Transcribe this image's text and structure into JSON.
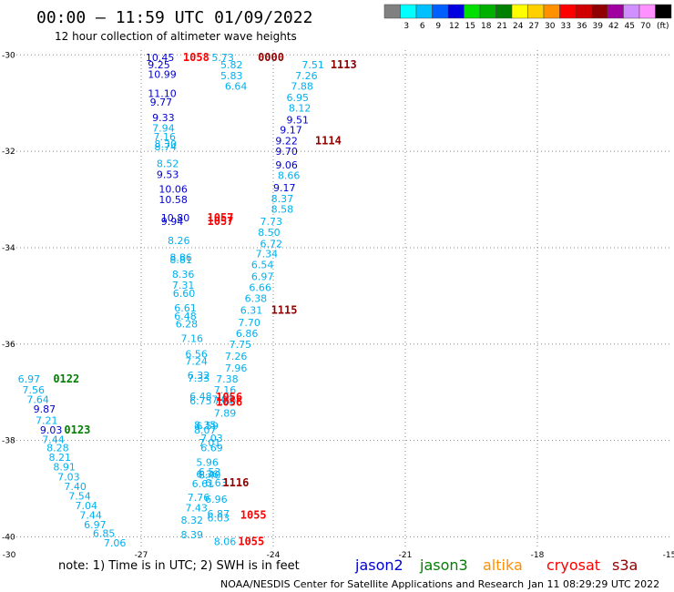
{
  "header": {
    "title": "00:00 – 11:59 UTC 01/09/2022",
    "subtitle": "12 hour collection of altimeter wave heights"
  },
  "color_scale": {
    "bins": [
      {
        "label": "",
        "color": "#808080"
      },
      {
        "label": "3",
        "color": "#00ffff"
      },
      {
        "label": "6",
        "color": "#00c0ff"
      },
      {
        "label": "9",
        "color": "#0060ff"
      },
      {
        "label": "12",
        "color": "#0000e0"
      },
      {
        "label": "15",
        "color": "#00e000"
      },
      {
        "label": "18",
        "color": "#00b000"
      },
      {
        "label": "21",
        "color": "#008000"
      },
      {
        "label": "24",
        "color": "#ffff00"
      },
      {
        "label": "27",
        "color": "#ffd000"
      },
      {
        "label": "30",
        "color": "#ff9000"
      },
      {
        "label": "33",
        "color": "#ff0000"
      },
      {
        "label": "36",
        "color": "#d00000"
      },
      {
        "label": "39",
        "color": "#900000"
      },
      {
        "label": "42",
        "color": "#a000a0"
      },
      {
        "label": "45",
        "color": "#d090ff"
      },
      {
        "label": "70",
        "color": "#ff90ff"
      },
      {
        "label": "",
        "color": "#000000"
      }
    ],
    "unit": "(ft)"
  },
  "legend": {
    "note": "note:  1) Time is in UTC; 2) SWH is in feet",
    "satellites": [
      {
        "name": "jason2",
        "color": "#0000d0"
      },
      {
        "name": "jason3",
        "color": "#008000"
      },
      {
        "name": "altika",
        "color": "#ff9000"
      },
      {
        "name": "cryosat",
        "color": "#ff0000"
      },
      {
        "name": "s3a",
        "color": "#900000"
      }
    ]
  },
  "footer": {
    "credit": "NOAA/NESDIS Center for Satellite Applications and Research",
    "timestamp": "Jan 11 08:29:29 UTC 2022"
  },
  "colors": {
    "cyan": "#00b0f0",
    "blue": "#0000d0",
    "green": "#008000",
    "red": "#ff0000",
    "dark_red": "#900000",
    "gridline": "#888888"
  },
  "chart_data": {
    "type": "scatter",
    "title": "00:00 – 11:59 UTC 01/09/2022",
    "subtitle": "12 hour collection of altimeter wave heights",
    "xlim": [
      -30,
      -15
    ],
    "ylim": [
      -40.2,
      -29.9
    ],
    "x_ticks": [
      -30,
      -27,
      -24,
      -21,
      -18,
      -15
    ],
    "x_tick_labels": [
      "-30",
      "-27",
      "-24",
      "-21",
      "-18",
      "-15"
    ],
    "y_ticks": [
      -30,
      -32,
      -34,
      -36,
      -38,
      -40
    ],
    "y_tick_labels": [
      "-30",
      "-32",
      "-34",
      "-36",
      "-38",
      "-40"
    ],
    "grid": "dotted",
    "labels": [
      {
        "lon": -26.9,
        "lat": -30.05,
        "text": "10.45",
        "c": "blue"
      },
      {
        "lon": -26.85,
        "lat": -30.2,
        "text": "9.25",
        "c": "blue"
      },
      {
        "lon": -26.85,
        "lat": -30.4,
        "text": "10.99",
        "c": "blue"
      },
      {
        "lon": -26.85,
        "lat": -30.8,
        "text": "11.10",
        "c": "blue"
      },
      {
        "lon": -26.8,
        "lat": -30.98,
        "text": "9.77",
        "c": "blue"
      },
      {
        "lon": -26.75,
        "lat": -31.3,
        "text": "9.33",
        "c": "blue"
      },
      {
        "lon": -26.75,
        "lat": -31.52,
        "text": "7.94",
        "c": "cyan"
      },
      {
        "lon": -26.72,
        "lat": -31.7,
        "text": "7.16",
        "c": "cyan"
      },
      {
        "lon": -26.7,
        "lat": -31.85,
        "text": "8.30",
        "c": "cyan"
      },
      {
        "lon": -26.7,
        "lat": -31.9,
        "text": "8.74",
        "c": "cyan"
      },
      {
        "lon": -26.65,
        "lat": -32.25,
        "text": "8.52",
        "c": "cyan"
      },
      {
        "lon": -26.65,
        "lat": -32.48,
        "text": "9.53",
        "c": "blue"
      },
      {
        "lon": -26.6,
        "lat": -32.78,
        "text": "10.06",
        "c": "blue"
      },
      {
        "lon": -26.6,
        "lat": -33.0,
        "text": "10.58",
        "c": "blue"
      },
      {
        "lon": -26.55,
        "lat": -33.38,
        "text": "10.80",
        "c": "blue"
      },
      {
        "lon": -26.55,
        "lat": -33.45,
        "text": "9.94",
        "c": "blue"
      },
      {
        "lon": -26.4,
        "lat": -33.85,
        "text": "8.26",
        "c": "cyan"
      },
      {
        "lon": -26.35,
        "lat": -34.2,
        "text": "8.86",
        "c": "cyan"
      },
      {
        "lon": -26.35,
        "lat": -34.25,
        "text": "8.81",
        "c": "cyan"
      },
      {
        "lon": -26.3,
        "lat": -34.55,
        "text": "8.36",
        "c": "cyan"
      },
      {
        "lon": -26.3,
        "lat": -34.78,
        "text": "7.31",
        "c": "cyan"
      },
      {
        "lon": -26.28,
        "lat": -34.95,
        "text": "6.60",
        "c": "cyan"
      },
      {
        "lon": -26.25,
        "lat": -35.25,
        "text": "6.61",
        "c": "cyan"
      },
      {
        "lon": -26.25,
        "lat": -35.42,
        "text": "6.48",
        "c": "cyan"
      },
      {
        "lon": -26.22,
        "lat": -35.58,
        "text": "6.28",
        "c": "cyan"
      },
      {
        "lon": -26.1,
        "lat": -35.88,
        "text": "7.16",
        "c": "cyan"
      },
      {
        "lon": -26.0,
        "lat": -36.2,
        "text": "6.56",
        "c": "cyan"
      },
      {
        "lon": -26.0,
        "lat": -36.35,
        "text": "7.24",
        "c": "cyan"
      },
      {
        "lon": -25.95,
        "lat": -36.65,
        "text": "6.32",
        "c": "cyan"
      },
      {
        "lon": -25.95,
        "lat": -36.7,
        "text": "7.33",
        "c": "cyan"
      },
      {
        "lon": -25.9,
        "lat": -37.08,
        "text": "6.48",
        "c": "cyan"
      },
      {
        "lon": -25.9,
        "lat": -37.18,
        "text": "6.75",
        "c": "cyan"
      },
      {
        "lon": -25.8,
        "lat": -37.68,
        "text": "8.35",
        "c": "cyan"
      },
      {
        "lon": -25.75,
        "lat": -37.7,
        "text": "6.59",
        "c": "cyan"
      },
      {
        "lon": -25.8,
        "lat": -37.78,
        "text": "8.07",
        "c": "cyan"
      },
      {
        "lon": -25.65,
        "lat": -37.95,
        "text": "7.03",
        "c": "cyan"
      },
      {
        "lon": -25.7,
        "lat": -38.05,
        "text": "7.01",
        "c": "cyan"
      },
      {
        "lon": -25.65,
        "lat": -38.15,
        "text": "6.69",
        "c": "cyan"
      },
      {
        "lon": -25.75,
        "lat": -38.45,
        "text": "5.96",
        "c": "cyan"
      },
      {
        "lon": -25.7,
        "lat": -38.65,
        "text": "6.53",
        "c": "cyan"
      },
      {
        "lon": -25.75,
        "lat": -38.7,
        "text": "6.36",
        "c": "cyan"
      },
      {
        "lon": -25.7,
        "lat": -38.72,
        "text": "6.40",
        "c": "cyan"
      },
      {
        "lon": -25.85,
        "lat": -38.9,
        "text": "6.61",
        "c": "cyan"
      },
      {
        "lon": -25.55,
        "lat": -38.88,
        "text": "6.63",
        "c": "cyan"
      },
      {
        "lon": -25.95,
        "lat": -39.18,
        "text": "7.76",
        "c": "cyan"
      },
      {
        "lon": -25.55,
        "lat": -39.22,
        "text": "6.96",
        "c": "cyan"
      },
      {
        "lon": -26.0,
        "lat": -39.4,
        "text": "7.43",
        "c": "cyan"
      },
      {
        "lon": -25.5,
        "lat": -39.52,
        "text": "6.87",
        "c": "cyan"
      },
      {
        "lon": -26.1,
        "lat": -39.65,
        "text": "8.32",
        "c": "cyan"
      },
      {
        "lon": -25.5,
        "lat": -39.6,
        "text": "6.03",
        "c": "cyan"
      },
      {
        "lon": -26.1,
        "lat": -39.95,
        "text": "8.39",
        "c": "cyan"
      },
      {
        "lon": -25.35,
        "lat": -40.1,
        "text": "8.06",
        "c": "cyan"
      },
      {
        "lon": -25.4,
        "lat": -30.05,
        "text": "5.73",
        "c": "cyan"
      },
      {
        "lon": -25.2,
        "lat": -30.2,
        "text": "5.82",
        "c": "cyan"
      },
      {
        "lon": -25.2,
        "lat": -30.43,
        "text": "5.83",
        "c": "cyan"
      },
      {
        "lon": -25.1,
        "lat": -30.65,
        "text": "6.64",
        "c": "cyan"
      },
      {
        "lon": -23.35,
        "lat": -30.2,
        "text": "7.51",
        "c": "cyan"
      },
      {
        "lon": -23.5,
        "lat": -30.43,
        "text": "7.26",
        "c": "cyan"
      },
      {
        "lon": -23.6,
        "lat": -30.65,
        "text": "7.88",
        "c": "cyan"
      },
      {
        "lon": -23.7,
        "lat": -30.88,
        "text": "6.95",
        "c": "cyan"
      },
      {
        "lon": -23.65,
        "lat": -31.1,
        "text": "8.12",
        "c": "cyan"
      },
      {
        "lon": -23.7,
        "lat": -31.35,
        "text": "9.51",
        "c": "blue"
      },
      {
        "lon": -23.85,
        "lat": -31.55,
        "text": "9.17",
        "c": "blue"
      },
      {
        "lon": -23.95,
        "lat": -31.78,
        "text": "9.22",
        "c": "blue"
      },
      {
        "lon": -23.95,
        "lat": -32.0,
        "text": "9.70",
        "c": "blue"
      },
      {
        "lon": -23.95,
        "lat": -32.28,
        "text": "9.06",
        "c": "blue"
      },
      {
        "lon": -23.9,
        "lat": -32.5,
        "text": "8.66",
        "c": "cyan"
      },
      {
        "lon": -24.0,
        "lat": -32.75,
        "text": "9.17",
        "c": "blue"
      },
      {
        "lon": -24.05,
        "lat": -32.98,
        "text": "8.37",
        "c": "cyan"
      },
      {
        "lon": -24.05,
        "lat": -33.2,
        "text": "8.58",
        "c": "cyan"
      },
      {
        "lon": -24.3,
        "lat": -33.45,
        "text": "7.73",
        "c": "cyan"
      },
      {
        "lon": -24.35,
        "lat": -33.68,
        "text": "8.50",
        "c": "cyan"
      },
      {
        "lon": -24.3,
        "lat": -33.92,
        "text": "6.72",
        "c": "cyan"
      },
      {
        "lon": -24.4,
        "lat": -34.12,
        "text": "7.34",
        "c": "cyan"
      },
      {
        "lon": -24.5,
        "lat": -34.35,
        "text": "6.54",
        "c": "cyan"
      },
      {
        "lon": -24.5,
        "lat": -34.6,
        "text": "6.97",
        "c": "cyan"
      },
      {
        "lon": -24.55,
        "lat": -34.82,
        "text": "6.66",
        "c": "cyan"
      },
      {
        "lon": -24.65,
        "lat": -35.05,
        "text": "6.38",
        "c": "cyan"
      },
      {
        "lon": -24.75,
        "lat": -35.3,
        "text": "6.31",
        "c": "cyan"
      },
      {
        "lon": -24.8,
        "lat": -35.55,
        "text": "7.70",
        "c": "cyan"
      },
      {
        "lon": -24.85,
        "lat": -35.78,
        "text": "6.86",
        "c": "cyan"
      },
      {
        "lon": -25.0,
        "lat": -36.0,
        "text": "7.75",
        "c": "cyan"
      },
      {
        "lon": -25.1,
        "lat": -36.25,
        "text": "7.26",
        "c": "cyan"
      },
      {
        "lon": -25.1,
        "lat": -36.5,
        "text": "7.96",
        "c": "cyan"
      },
      {
        "lon": -25.3,
        "lat": -36.72,
        "text": "7.38",
        "c": "cyan"
      },
      {
        "lon": -25.35,
        "lat": -36.95,
        "text": "7.16",
        "c": "cyan"
      },
      {
        "lon": -25.4,
        "lat": -37.15,
        "text": "7.03",
        "c": "cyan"
      },
      {
        "lon": -25.35,
        "lat": -37.18,
        "text": "7.60",
        "c": "cyan"
      },
      {
        "lon": -25.35,
        "lat": -37.43,
        "text": "7.89",
        "c": "cyan"
      },
      {
        "lon": -29.8,
        "lat": -36.72,
        "text": "6.97",
        "c": "cyan"
      },
      {
        "lon": -29.7,
        "lat": -36.95,
        "text": "7.56",
        "c": "cyan"
      },
      {
        "lon": -29.6,
        "lat": -37.15,
        "text": "7.64",
        "c": "cyan"
      },
      {
        "lon": -29.45,
        "lat": -37.35,
        "text": "9.87",
        "c": "blue"
      },
      {
        "lon": -29.4,
        "lat": -37.58,
        "text": "7.21",
        "c": "cyan"
      },
      {
        "lon": -29.3,
        "lat": -37.78,
        "text": "9.03",
        "c": "blue"
      },
      {
        "lon": -29.25,
        "lat": -37.98,
        "text": "7.44",
        "c": "cyan"
      },
      {
        "lon": -29.15,
        "lat": -38.15,
        "text": "8.28",
        "c": "cyan"
      },
      {
        "lon": -29.1,
        "lat": -38.35,
        "text": "8.21",
        "c": "cyan"
      },
      {
        "lon": -29.0,
        "lat": -38.55,
        "text": "8.91",
        "c": "cyan"
      },
      {
        "lon": -28.9,
        "lat": -38.75,
        "text": "7.03",
        "c": "cyan"
      },
      {
        "lon": -28.75,
        "lat": -38.95,
        "text": "7.40",
        "c": "cyan"
      },
      {
        "lon": -28.65,
        "lat": -39.15,
        "text": "7.54",
        "c": "cyan"
      },
      {
        "lon": -28.5,
        "lat": -39.35,
        "text": "7.04",
        "c": "cyan"
      },
      {
        "lon": -28.4,
        "lat": -39.55,
        "text": "7.44",
        "c": "cyan"
      },
      {
        "lon": -28.3,
        "lat": -39.75,
        "text": "6.97",
        "c": "cyan"
      },
      {
        "lon": -28.1,
        "lat": -39.93,
        "text": "6.85",
        "c": "cyan"
      },
      {
        "lon": -27.85,
        "lat": -40.12,
        "text": "7.06",
        "c": "cyan"
      }
    ],
    "time_labels": [
      {
        "lon": -26.05,
        "lat": -30.05,
        "text": "1058",
        "c": "red"
      },
      {
        "lon": -24.35,
        "lat": -30.05,
        "text": "0000",
        "c": "dark_red"
      },
      {
        "lon": -22.7,
        "lat": -30.2,
        "text": "1113",
        "c": "dark_red"
      },
      {
        "lon": -23.05,
        "lat": -31.78,
        "text": "1114",
        "c": "dark_red"
      },
      {
        "lon": -25.5,
        "lat": -33.45,
        "text": "1057",
        "c": "red"
      },
      {
        "lon": -25.5,
        "lat": -33.38,
        "text": "1057",
        "c": "red"
      },
      {
        "lon": -24.05,
        "lat": -35.3,
        "text": "1115",
        "c": "dark_red"
      },
      {
        "lon": -25.3,
        "lat": -37.1,
        "text": "1056",
        "c": "red"
      },
      {
        "lon": -25.3,
        "lat": -37.2,
        "text": "1056",
        "c": "red"
      },
      {
        "lon": -25.15,
        "lat": -38.88,
        "text": "1116",
        "c": "dark_red"
      },
      {
        "lon": -24.75,
        "lat": -39.55,
        "text": "1055",
        "c": "red"
      },
      {
        "lon": -24.8,
        "lat": -40.1,
        "text": "1055",
        "c": "red"
      },
      {
        "lon": -29.0,
        "lat": -36.72,
        "text": "0122",
        "c": "green"
      },
      {
        "lon": -28.75,
        "lat": -37.78,
        "text": "0123",
        "c": "green"
      }
    ]
  }
}
